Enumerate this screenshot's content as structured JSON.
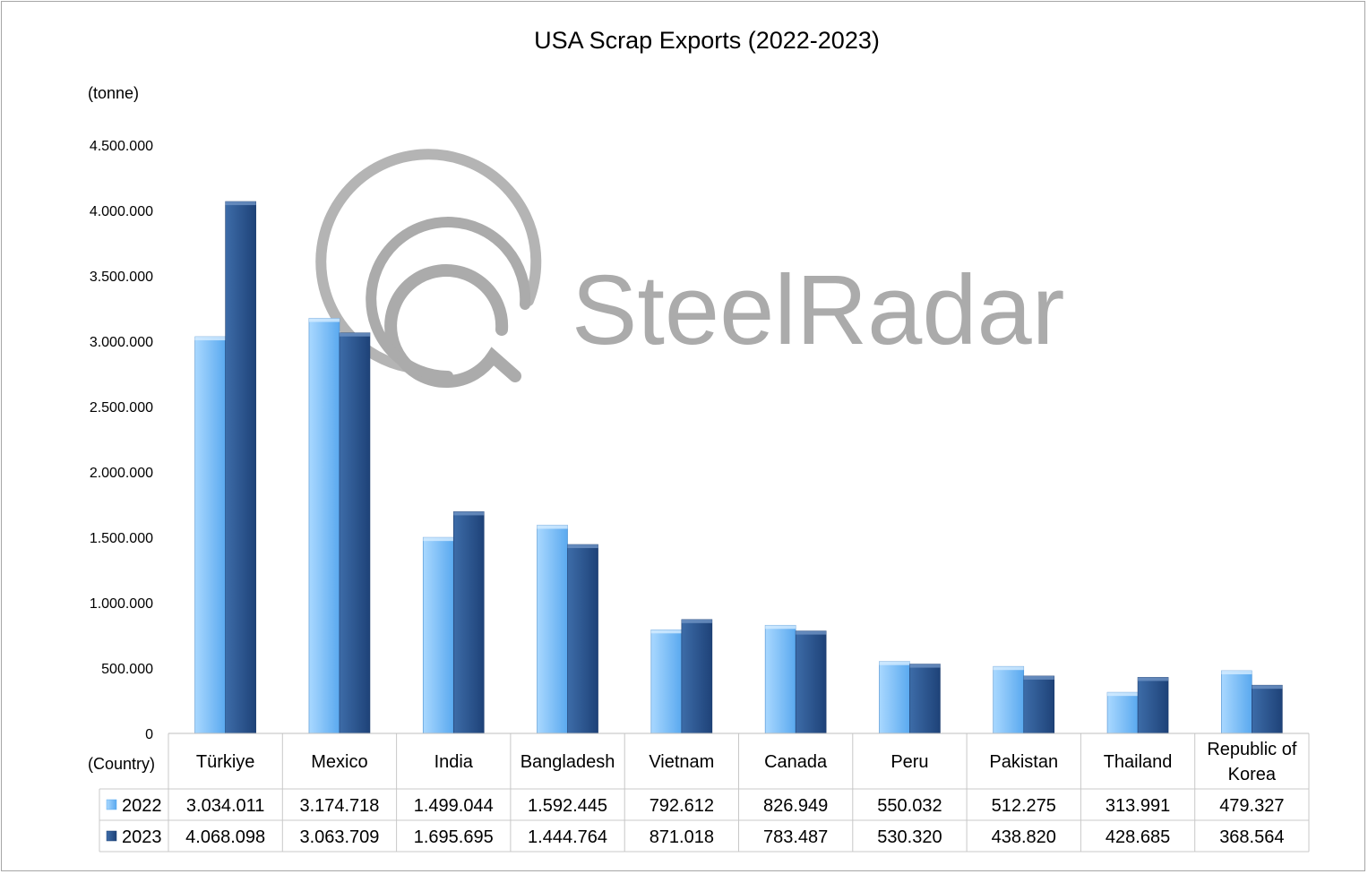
{
  "colors": {
    "series_2022_light": "#a9d8ff",
    "series_2022_dark": "#5aa9ef",
    "series_2023_light": "#3d6ca8",
    "series_2023_dark": "#1e4278",
    "watermark": "#a7a7a7"
  },
  "watermark": {
    "text": "SteelRadar",
    "icon": "radar-logo-icon"
  },
  "chart_data": {
    "type": "bar",
    "title": "USA Scrap Exports (2022-2023)",
    "ylabel": "(tonne)",
    "xlabel": "(Country)",
    "ylim": [
      0,
      4500000
    ],
    "ytick_values": [
      0,
      500000,
      1000000,
      1500000,
      2000000,
      2500000,
      3000000,
      3500000,
      4000000,
      4500000
    ],
    "ytick_labels": [
      "0",
      "500.000",
      "1.000.000",
      "1.500.000",
      "2.000.000",
      "2.500.000",
      "3.000.000",
      "3.500.000",
      "4.000.000",
      "4.500.000"
    ],
    "grid": false,
    "legend": "data-table",
    "categories": [
      [
        "Türkiye"
      ],
      [
        "Mexico"
      ],
      [
        "India"
      ],
      [
        "Bangladesh"
      ],
      [
        "Vietnam"
      ],
      [
        "Canada"
      ],
      [
        "Peru"
      ],
      [
        "Pakistan"
      ],
      [
        "Thailand"
      ],
      [
        "Republic of",
        "Korea"
      ]
    ],
    "series": [
      {
        "name": "2022",
        "values": [
          3034011,
          3174718,
          1499044,
          1592445,
          792612,
          826949,
          550032,
          512275,
          313991,
          479327
        ],
        "labels": [
          "3.034.011",
          "3.174.718",
          "1.499.044",
          "1.592.445",
          "792.612",
          "826.949",
          "550.032",
          "512.275",
          "313.991",
          "479.327"
        ]
      },
      {
        "name": "2023",
        "values": [
          4068098,
          3063709,
          1695695,
          1444764,
          871018,
          783487,
          530320,
          438820,
          428685,
          368564
        ],
        "labels": [
          "4.068.098",
          "3.063.709",
          "1.695.695",
          "1.444.764",
          "871.018",
          "783.487",
          "530.320",
          "438.820",
          "428.685",
          "368.564"
        ]
      }
    ]
  }
}
